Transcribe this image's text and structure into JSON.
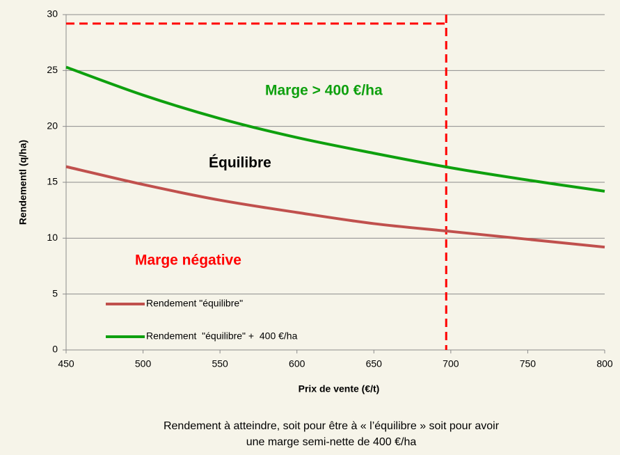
{
  "chart_data": {
    "type": "line",
    "x_label": "Prix de vente (€/t)",
    "y_label": "Rendementl (q/ha)",
    "x": [
      450,
      500,
      550,
      600,
      650,
      700,
      750,
      800
    ],
    "series": [
      {
        "name": "Rendement \"équilibre\"",
        "color": "#c0504d",
        "values": [
          16.4,
          14.8,
          13.4,
          12.3,
          11.3,
          10.6,
          9.9,
          9.2
        ]
      },
      {
        "name": "Rendement  \"équilibre\" +  400 €/ha",
        "color": "#0ea00e",
        "values": [
          25.3,
          22.8,
          20.7,
          19.0,
          17.6,
          16.3,
          15.2,
          14.2
        ]
      }
    ],
    "xlim": [
      450,
      800
    ],
    "xticks": [
      450,
      500,
      550,
      600,
      650,
      700,
      750,
      800
    ],
    "ylim": [
      0,
      30
    ],
    "yticks": [
      0,
      5,
      10,
      15,
      20,
      25,
      30
    ],
    "grid": true,
    "reference": {
      "x": 697,
      "y": 29.2,
      "color": "#ff0000"
    },
    "annotations": [
      {
        "text": "Marge > 400 €/ha",
        "color": "#0ea00e"
      },
      {
        "text": "Équilibre",
        "color": "#000000"
      },
      {
        "text": "Marge négative",
        "color": "#ff0000"
      }
    ],
    "caption": [
      "Rendement à atteindre, soit  pour être à « l’équilibre » soit pour avoir",
      "une marge semi-nette de 400 €/ha"
    ]
  }
}
